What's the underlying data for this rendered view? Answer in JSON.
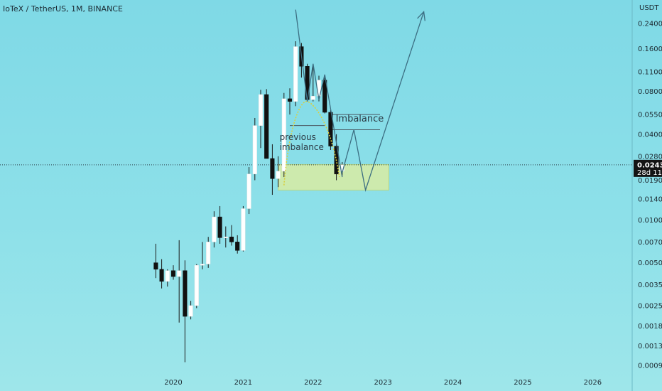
{
  "header": {
    "symbol_title": "IoTeX / TetherUS, 1M, BINANCE"
  },
  "colors": {
    "background": "#8adfe8",
    "bull_candle": "#ffffff",
    "bear_candle": "#111111",
    "zone": "#d8eca2",
    "drawing": "#3c6e82",
    "curve": "#d8d040",
    "price_label_bg": "#141414",
    "price_label_text": "#ffffff"
  },
  "chart_data": {
    "type": "candlestick",
    "title": "IoTeX / TetherUS, 1M, BINANCE",
    "x_axis": {
      "ticks": [
        "2020",
        "2021",
        "2022",
        "2023",
        "2024",
        "2025",
        "2026"
      ]
    },
    "y_axis": {
      "scale": "log",
      "unit_label": "USDT",
      "ticks": [
        "0.24000",
        "0.16000",
        "0.11000",
        "0.08000",
        "0.05500",
        "0.04000",
        "0.02800",
        "0.01900",
        "0.01400",
        "0.01000",
        "0.00700",
        "0.00500",
        "0.00350",
        "0.00250",
        "0.00180",
        "0.00130",
        "0.00095"
      ],
      "range": [
        0.00085,
        0.36
      ]
    },
    "current_price": {
      "value": "0.02438",
      "countdown": "28d 11h"
    },
    "candles": [
      {
        "date": "2019-10",
        "open": 0.005,
        "high": 0.0068,
        "low": 0.0039,
        "close": 0.0045
      },
      {
        "date": "2019-11",
        "open": 0.0045,
        "high": 0.0053,
        "low": 0.0033,
        "close": 0.0037
      },
      {
        "date": "2019-12",
        "open": 0.0037,
        "high": 0.0045,
        "low": 0.0034,
        "close": 0.0044
      },
      {
        "date": "2020-01",
        "open": 0.0044,
        "high": 0.0048,
        "low": 0.0038,
        "close": 0.004
      },
      {
        "date": "2020-02",
        "open": 0.004,
        "high": 0.0072,
        "low": 0.0019,
        "close": 0.0044
      },
      {
        "date": "2020-03",
        "open": 0.0044,
        "high": 0.0052,
        "low": 0.001,
        "close": 0.0021
      },
      {
        "date": "2020-04",
        "open": 0.0021,
        "high": 0.0027,
        "low": 0.002,
        "close": 0.0025
      },
      {
        "date": "2020-05",
        "open": 0.0025,
        "high": 0.0049,
        "low": 0.0024,
        "close": 0.0048
      },
      {
        "date": "2020-06",
        "open": 0.0048,
        "high": 0.007,
        "low": 0.0045,
        "close": 0.0049
      },
      {
        "date": "2020-07",
        "open": 0.0049,
        "high": 0.0076,
        "low": 0.0046,
        "close": 0.007
      },
      {
        "date": "2020-08",
        "open": 0.007,
        "high": 0.0115,
        "low": 0.0064,
        "close": 0.0105
      },
      {
        "date": "2020-09",
        "open": 0.0105,
        "high": 0.0125,
        "low": 0.0068,
        "close": 0.0075
      },
      {
        "date": "2020-10",
        "open": 0.0075,
        "high": 0.009,
        "low": 0.0064,
        "close": 0.0076
      },
      {
        "date": "2020-11",
        "open": 0.0076,
        "high": 0.0092,
        "low": 0.0066,
        "close": 0.007
      },
      {
        "date": "2020-12",
        "open": 0.007,
        "high": 0.0078,
        "low": 0.0058,
        "close": 0.0061
      },
      {
        "date": "2021-01",
        "open": 0.0061,
        "high": 0.0125,
        "low": 0.006,
        "close": 0.012
      },
      {
        "date": "2021-02",
        "open": 0.012,
        "high": 0.0235,
        "low": 0.011,
        "close": 0.021
      },
      {
        "date": "2021-03",
        "open": 0.021,
        "high": 0.052,
        "low": 0.019,
        "close": 0.046
      },
      {
        "date": "2021-04",
        "open": 0.046,
        "high": 0.082,
        "low": 0.032,
        "close": 0.076
      },
      {
        "date": "2021-05",
        "open": 0.076,
        "high": 0.083,
        "low": 0.027,
        "close": 0.027
      },
      {
        "date": "2021-06",
        "open": 0.027,
        "high": 0.034,
        "low": 0.015,
        "close": 0.0195
      },
      {
        "date": "2021-07",
        "open": 0.0195,
        "high": 0.028,
        "low": 0.017,
        "close": 0.022
      },
      {
        "date": "2021-08",
        "open": 0.022,
        "high": 0.078,
        "low": 0.02,
        "close": 0.071
      },
      {
        "date": "2021-09",
        "open": 0.071,
        "high": 0.084,
        "low": 0.055,
        "close": 0.068
      },
      {
        "date": "2021-10",
        "open": 0.068,
        "high": 0.18,
        "low": 0.063,
        "close": 0.165
      },
      {
        "date": "2021-11",
        "open": 0.165,
        "high": 0.175,
        "low": 0.1,
        "close": 0.12
      },
      {
        "date": "2021-12",
        "open": 0.12,
        "high": 0.125,
        "low": 0.068,
        "close": 0.07
      },
      {
        "date": "2022-01",
        "open": 0.07,
        "high": 0.12,
        "low": 0.068,
        "close": 0.074
      },
      {
        "date": "2022-02",
        "open": 0.074,
        "high": 0.103,
        "low": 0.068,
        "close": 0.096
      },
      {
        "date": "2022-03",
        "open": 0.096,
        "high": 0.1,
        "low": 0.056,
        "close": 0.057
      },
      {
        "date": "2022-04",
        "open": 0.057,
        "high": 0.059,
        "low": 0.031,
        "close": 0.033
      },
      {
        "date": "2022-05",
        "open": 0.033,
        "high": 0.04,
        "low": 0.019,
        "close": 0.021
      },
      {
        "date": "2022-06",
        "open": 0.022,
        "high": 0.0255,
        "low": 0.0205,
        "close": 0.02438
      }
    ],
    "annotations": [
      {
        "kind": "text",
        "lines": [
          "previous",
          "imbalance"
        ]
      },
      {
        "kind": "text",
        "lines": [
          "Imbalance"
        ]
      }
    ],
    "zone": {
      "top": 0.0245,
      "bottom": 0.0162,
      "start": "2021-07",
      "end": "2023-02"
    },
    "imbalance_levels": [
      0.055,
      0.043
    ],
    "previous_imbalance_level": 0.046,
    "projected_path": [
      {
        "date": "2022-06",
        "price": 0.0215
      },
      {
        "date": "2022-08",
        "price": 0.043
      },
      {
        "date": "2022-10",
        "price": 0.0162
      },
      {
        "date": "2023-08",
        "price": 0.29
      }
    ],
    "head_shoulders_lines": [
      {
        "date": "2021-10",
        "price": 0.3
      },
      {
        "date": "2021-12",
        "price": 0.068
      },
      {
        "date": "2022-01",
        "price": 0.125
      },
      {
        "date": "2022-02",
        "price": 0.07
      },
      {
        "date": "2022-03",
        "price": 0.105
      },
      {
        "date": "2022-06",
        "price": 0.02
      }
    ],
    "grid": false,
    "legend": "none"
  }
}
